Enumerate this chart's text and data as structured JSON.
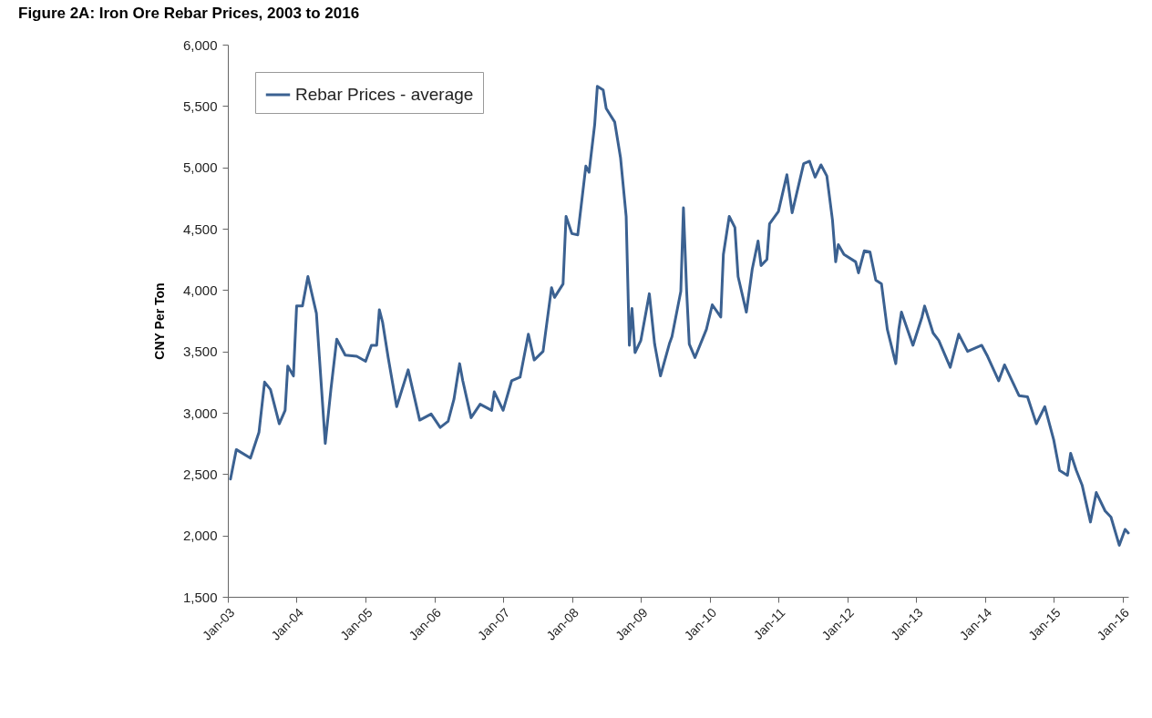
{
  "chart_data": {
    "type": "line",
    "title": "Figure 2A: Iron Ore Rebar Prices, 2003 to 2016",
    "ylabel": "CNY Per Ton",
    "x": [
      "2003-01-15",
      "2003-02-15",
      "2003-05-01",
      "2003-06-15",
      "2003-07-15",
      "2003-08-15",
      "2003-10-01",
      "2003-11-01",
      "2003-11-15",
      "2003-12-15",
      "2004-01-01",
      "2004-02-01",
      "2004-03-01",
      "2004-04-15",
      "2004-05-01",
      "2004-06-01",
      "2004-07-01",
      "2004-08-01",
      "2004-09-15",
      "2004-11-15",
      "2005-01-01",
      "2005-02-01",
      "2005-03-01",
      "2005-03-15",
      "2005-04-01",
      "2005-05-01",
      "2005-06-15",
      "2005-08-15",
      "2005-10-15",
      "2005-12-15",
      "2006-02-01",
      "2006-03-15",
      "2006-04-15",
      "2006-05-15",
      "2006-06-01",
      "2006-07-15",
      "2006-09-01",
      "2006-11-01",
      "2006-11-15",
      "2007-01-01",
      "2007-02-15",
      "2007-04-01",
      "2007-05-15",
      "2007-06-15",
      "2007-08-01",
      "2007-09-15",
      "2007-10-01",
      "2007-11-15",
      "2007-12-01",
      "2008-01-01",
      "2008-02-01",
      "2008-03-15",
      "2008-04-01",
      "2008-05-01",
      "2008-05-15",
      "2008-06-15",
      "2008-07-01",
      "2008-08-15",
      "2008-09-15",
      "2008-10-15",
      "2008-11-01",
      "2008-11-15",
      "2008-12-01",
      "2009-01-01",
      "2009-02-15",
      "2009-03-15",
      "2009-04-15",
      "2009-06-01",
      "2009-06-15",
      "2009-08-01",
      "2009-08-15",
      "2009-09-01",
      "2009-09-15",
      "2009-10-15",
      "2009-12-15",
      "2010-01-15",
      "2010-03-01",
      "2010-03-15",
      "2010-04-15",
      "2010-05-15",
      "2010-06-01",
      "2010-07-15",
      "2010-08-15",
      "2010-09-15",
      "2010-10-01",
      "2010-11-01",
      "2010-11-15",
      "2011-01-01",
      "2011-02-15",
      "2011-03-15",
      "2011-05-15",
      "2011-06-15",
      "2011-07-15",
      "2011-08-15",
      "2011-09-15",
      "2011-10-15",
      "2011-11-01",
      "2011-11-15",
      "2011-12-15",
      "2012-02-15",
      "2012-03-01",
      "2012-04-01",
      "2012-05-01",
      "2012-06-01",
      "2012-07-01",
      "2012-08-01",
      "2012-09-15",
      "2012-10-01",
      "2012-10-15",
      "2012-12-15",
      "2013-02-01",
      "2013-02-15",
      "2013-04-01",
      "2013-05-01",
      "2013-07-01",
      "2013-08-15",
      "2013-10-01",
      "2013-12-15",
      "2014-01-15",
      "2014-03-15",
      "2014-04-15",
      "2014-07-01",
      "2014-08-15",
      "2014-10-01",
      "2014-11-15",
      "2015-01-01",
      "2015-02-01",
      "2015-03-15",
      "2015-04-01",
      "2015-05-01",
      "2015-06-01",
      "2015-07-15",
      "2015-08-15",
      "2015-10-01",
      "2015-11-01",
      "2015-12-15",
      "2016-01-15",
      "2016-02-01"
    ],
    "series": [
      {
        "name": "Rebar Prices - average",
        "color": "#3b6191",
        "values": [
          2460,
          2700,
          2630,
          2840,
          3250,
          3190,
          2910,
          3020,
          3380,
          3300,
          3870,
          3870,
          4110,
          3810,
          3450,
          2750,
          3190,
          3600,
          3470,
          3460,
          3420,
          3550,
          3550,
          3840,
          3740,
          3450,
          3050,
          3350,
          2940,
          2990,
          2880,
          2930,
          3110,
          3400,
          3260,
          2960,
          3070,
          3020,
          3170,
          3020,
          3260,
          3290,
          3640,
          3430,
          3500,
          4020,
          3940,
          4050,
          4600,
          4460,
          4450,
          5010,
          4960,
          5350,
          5660,
          5630,
          5480,
          5370,
          5080,
          4600,
          3550,
          3850,
          3490,
          3590,
          3970,
          3560,
          3300,
          3560,
          3620,
          3990,
          4670,
          3990,
          3560,
          3450,
          3680,
          3880,
          3780,
          4290,
          4600,
          4510,
          4110,
          3820,
          4170,
          4400,
          4200,
          4250,
          4540,
          4640,
          4940,
          4630,
          5030,
          5050,
          4920,
          5020,
          4930,
          4570,
          4230,
          4370,
          4290,
          4230,
          4140,
          4320,
          4310,
          4080,
          4050,
          3680,
          3400,
          3680,
          3820,
          3550,
          3780,
          3870,
          3650,
          3590,
          3370,
          3640,
          3500,
          3550,
          3460,
          3260,
          3390,
          3140,
          3130,
          2910,
          3050,
          2780,
          2530,
          2490,
          2670,
          2530,
          2410,
          2110,
          2350,
          2200,
          2150,
          1920,
          2050,
          2020
        ]
      }
    ],
    "xlim": [
      "2003-01-01",
      "2016-02-01"
    ],
    "xticks": [
      {
        "value": "2003-01-01",
        "label": "Jan-03"
      },
      {
        "value": "2004-01-01",
        "label": "Jan-04"
      },
      {
        "value": "2005-01-01",
        "label": "Jan-05"
      },
      {
        "value": "2006-01-01",
        "label": "Jan-06"
      },
      {
        "value": "2007-01-01",
        "label": "Jan-07"
      },
      {
        "value": "2008-01-01",
        "label": "Jan-08"
      },
      {
        "value": "2009-01-01",
        "label": "Jan-09"
      },
      {
        "value": "2010-01-01",
        "label": "Jan-10"
      },
      {
        "value": "2011-01-01",
        "label": "Jan-11"
      },
      {
        "value": "2012-01-01",
        "label": "Jan-12"
      },
      {
        "value": "2013-01-01",
        "label": "Jan-13"
      },
      {
        "value": "2014-01-01",
        "label": "Jan-14"
      },
      {
        "value": "2015-01-01",
        "label": "Jan-15"
      },
      {
        "value": "2016-01-01",
        "label": "Jan-16"
      }
    ],
    "ylim": [
      1500,
      6000
    ],
    "yticks": [
      {
        "value": 1500,
        "label": "1,500"
      },
      {
        "value": 2000,
        "label": "2,000"
      },
      {
        "value": 2500,
        "label": "2,500"
      },
      {
        "value": 3000,
        "label": "3,000"
      },
      {
        "value": 3500,
        "label": "3,500"
      },
      {
        "value": 4000,
        "label": "4,000"
      },
      {
        "value": 4500,
        "label": "4,500"
      },
      {
        "value": 5000,
        "label": "5,000"
      },
      {
        "value": 5500,
        "label": "5,500"
      },
      {
        "value": 6000,
        "label": "6,000"
      }
    ],
    "legend": "top left"
  }
}
